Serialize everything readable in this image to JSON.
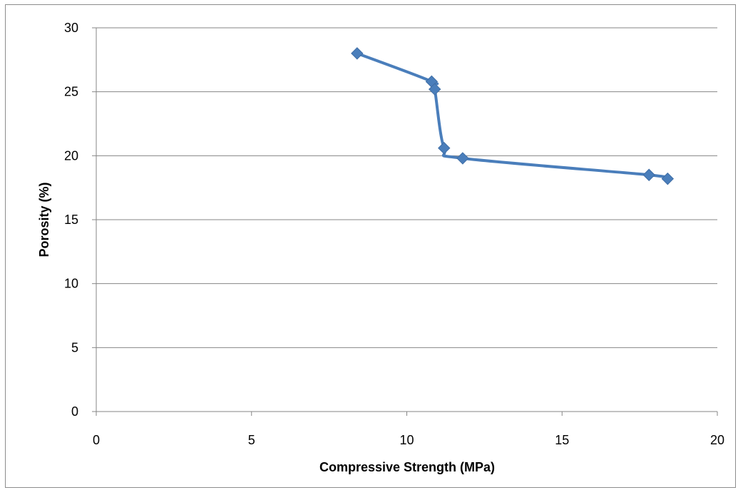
{
  "chart_data": {
    "type": "line",
    "title": "",
    "xlabel": "Compressive Strength (MPa)",
    "ylabel": "Porosity (%)",
    "xlim": [
      0,
      20
    ],
    "ylim": [
      0,
      30
    ],
    "x_ticks": [
      "0",
      "5",
      "10",
      "15",
      "20"
    ],
    "y_ticks": [
      "0",
      "5",
      "10",
      "15",
      "20",
      "25",
      "30"
    ],
    "grid": "horizontal",
    "legend": "none",
    "marker": "diamond",
    "smooth": true,
    "series": [
      {
        "color": "#4a7ebb",
        "x": [
          8.4,
          10.8,
          10.9,
          11.2,
          11.8,
          17.8,
          18.4
        ],
        "y": [
          28.0,
          25.8,
          25.2,
          20.6,
          19.8,
          18.5,
          18.2
        ]
      }
    ]
  }
}
